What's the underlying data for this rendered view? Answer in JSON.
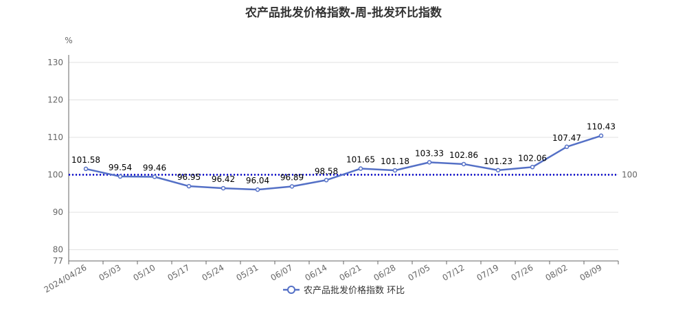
{
  "chart_data": {
    "type": "line",
    "title": "农产品批发价格指数-周-批发环比指数",
    "yunit": "%",
    "ylim": [
      77,
      132
    ],
    "yticks": [
      77,
      80,
      90,
      100,
      110,
      120,
      130
    ],
    "categories": [
      "2024/04/26",
      "05/03",
      "05/10",
      "05/17",
      "05/24",
      "05/31",
      "06/07",
      "06/14",
      "06/21",
      "06/28",
      "07/05",
      "07/12",
      "07/19",
      "07/26",
      "08/02",
      "08/09"
    ],
    "series": [
      {
        "name": "农产品批发价格指数 环比",
        "color": "#5470c6",
        "values": [
          101.58,
          99.54,
          99.46,
          96.95,
          96.42,
          96.04,
          96.89,
          98.58,
          101.65,
          101.18,
          103.33,
          102.86,
          101.23,
          102.06,
          107.47,
          110.43
        ]
      }
    ],
    "reference_line": {
      "value": 100,
      "label": "100",
      "color": "#0000cc",
      "style": "dotted"
    },
    "grid": "horizontal",
    "legend_position": "bottom-center"
  }
}
